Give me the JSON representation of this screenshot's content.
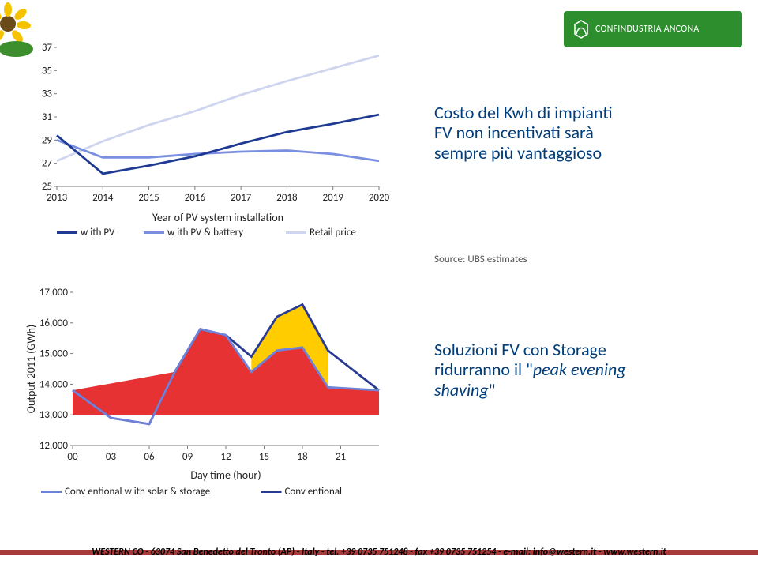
{
  "logo": {
    "text": "CONFINDUSTRIA ANCONA",
    "bg": "#2c8e2c",
    "fg": "#ffffff"
  },
  "note_top": {
    "line1": "Costo del Kwh di impianti",
    "line2": "FV non incentivati sarà",
    "line3": "sempre più vantaggioso"
  },
  "note_bottom": {
    "line1": "Soluzioni FV con Storage",
    "line2": "ridurranno il \"",
    "italic": "peak evening",
    "line3": "shaving",
    "quote": "\""
  },
  "source": "Source: UBS estimates",
  "chart1": {
    "type": "line",
    "colors": {
      "with_pv": "#1f3a93",
      "with_pv_batt": "#7b8fe0",
      "retail": "#cfd5ee",
      "grid": "#e8e8e8",
      "axis": "#7b7b7b",
      "text": "#222"
    },
    "x": [
      2013,
      2014,
      2015,
      2016,
      2017,
      2018,
      2019,
      2020
    ],
    "y_ticks": [
      25,
      27,
      29,
      31,
      33,
      35,
      37
    ],
    "ylim": [
      25,
      37
    ],
    "series": {
      "with_pv": [
        29.4,
        26.1,
        26.8,
        27.6,
        28.7,
        29.7,
        30.4,
        31.2
      ],
      "with_pv_batt": [
        29.0,
        27.5,
        27.5,
        27.8,
        28.0,
        28.1,
        27.8,
        27.2
      ],
      "retail": [
        27.2,
        28.9,
        30.3,
        31.5,
        32.9,
        34.1,
        35.2,
        36.3
      ]
    },
    "x_label": "Year of PV system installation",
    "legend": [
      "w ith PV",
      "w ith PV & battery",
      "Retail price"
    ],
    "stroke_width": 2.8,
    "tick_fontsize": 13,
    "label_fontsize": 14
  },
  "chart2": {
    "type": "area-overlay",
    "colors": {
      "solar_line": "#6f82d9",
      "conv_line": "#2a3a92",
      "conv_only": "#e63232",
      "solar_only": "#ffcc00",
      "axis": "#7b7b7b",
      "text": "#222"
    },
    "x_hours": [
      "00",
      "03",
      "06",
      "09",
      "12",
      "15",
      "18",
      "21"
    ],
    "x_raw": [
      0,
      3,
      6,
      9,
      12,
      15,
      18,
      21,
      24
    ],
    "y_ticks": [
      12000,
      13000,
      14000,
      15000,
      16000,
      17000
    ],
    "ylim": [
      12000,
      17000
    ],
    "solar": [
      13800,
      12900,
      12700,
      14400,
      15800,
      15600,
      14400,
      15100,
      15200,
      13900,
      13800
    ],
    "conv": [
      13800,
      12900,
      12700,
      14400,
      15800,
      15600,
      14900,
      16200,
      16600,
      15100,
      13800
    ],
    "solar_x": [
      0,
      3,
      6,
      8,
      10,
      12,
      14,
      16,
      18,
      20,
      24
    ],
    "conv_x": [
      0,
      3,
      6,
      8,
      10,
      12,
      14,
      16,
      18,
      20,
      24
    ],
    "x_label": "Day time (hour)",
    "y_label": "Output 2011 (GWh)",
    "legend": [
      "Conv entional w ith solar & storage",
      "Conv entional"
    ],
    "stroke_width": 2.8,
    "baseline_above": 13000,
    "evening_start": 13,
    "tick_fontsize": 13,
    "label_fontsize": 14
  },
  "footer": "WESTERN CO - 63074 San Benedetto del Tronto (AP) - Italy - tel. +39 0735 751248 - fax +39 0735 751254 - e-mail: info@western.it - www.western.it"
}
